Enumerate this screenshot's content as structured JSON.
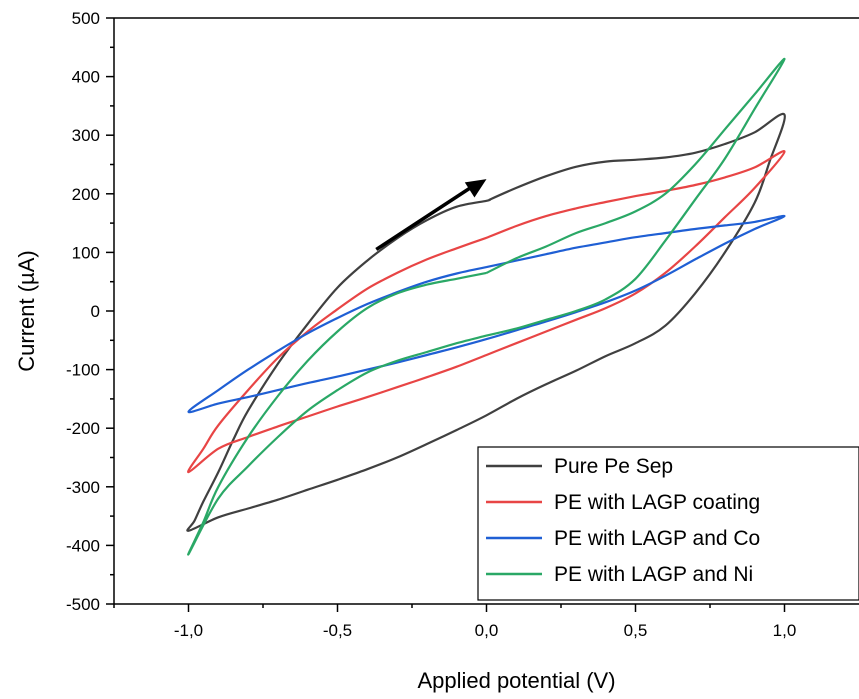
{
  "chart_data": {
    "type": "line",
    "xlabel": "Applied potential (V)",
    "ylabel": "Current (µA)",
    "xlim": [
      -1.25,
      1.25
    ],
    "ylim": [
      -500,
      500
    ],
    "x_ticks": [
      "-1,0",
      "-0,5",
      "0,0",
      "0,5",
      "1,0"
    ],
    "x_tick_values": [
      -1.0,
      -0.5,
      0.0,
      0.5,
      1.0
    ],
    "y_ticks": [
      "500",
      "400",
      "300",
      "200",
      "100",
      "0",
      "-100",
      "-200",
      "-300",
      "-400",
      "-500"
    ],
    "y_tick_values": [
      500,
      400,
      300,
      200,
      100,
      0,
      -100,
      -200,
      -300,
      -400,
      -500
    ],
    "legend_position": "bottom-right",
    "series": [
      {
        "name": "Pure Pe Sep",
        "color": "#404040",
        "x": [
          0.01,
          0.1,
          0.2,
          0.3,
          0.4,
          0.5,
          0.6,
          0.7,
          0.8,
          0.9,
          1.0,
          0.95,
          0.9,
          0.8,
          0.7,
          0.6,
          0.5,
          0.4,
          0.3,
          0.2,
          0.1,
          0.0,
          -0.1,
          -0.2,
          -0.3,
          -0.4,
          -0.5,
          -0.6,
          -0.7,
          -0.8,
          -0.9,
          -1.0,
          -0.98,
          -0.95,
          -0.9,
          -0.85,
          -0.8,
          -0.7,
          -0.6,
          -0.5,
          -0.4,
          -0.3,
          -0.2,
          -0.1,
          0.0,
          0.01
        ],
        "y": [
          190,
          210,
          230,
          246,
          255,
          258,
          262,
          270,
          285,
          305,
          335,
          255,
          185,
          100,
          30,
          -25,
          -55,
          -77,
          -102,
          -125,
          -150,
          -178,
          -203,
          -227,
          -250,
          -270,
          -288,
          -305,
          -322,
          -337,
          -352,
          -375,
          -358,
          -325,
          -275,
          -220,
          -170,
          -90,
          -22,
          40,
          86,
          124,
          155,
          178,
          188,
          190
        ]
      },
      {
        "name": "PE with LAGP coating",
        "color": "#e84545",
        "x": [
          0.0,
          0.1,
          0.2,
          0.3,
          0.4,
          0.5,
          0.6,
          0.7,
          0.8,
          0.9,
          1.0,
          0.9,
          0.8,
          0.7,
          0.6,
          0.5,
          0.4,
          0.3,
          0.2,
          0.1,
          0.0,
          -0.1,
          -0.2,
          -0.3,
          -0.4,
          -0.5,
          -0.6,
          -0.7,
          -0.8,
          -0.9,
          -1.0,
          -0.95,
          -0.9,
          -0.8,
          -0.7,
          -0.6,
          -0.5,
          -0.4,
          -0.3,
          -0.2,
          -0.1,
          0.0
        ],
        "y": [
          125,
          145,
          162,
          175,
          186,
          196,
          205,
          215,
          228,
          245,
          272,
          210,
          160,
          110,
          65,
          30,
          5,
          -15,
          -35,
          -55,
          -75,
          -95,
          -113,
          -130,
          -147,
          -163,
          -180,
          -197,
          -215,
          -235,
          -275,
          -235,
          -195,
          -135,
          -80,
          -35,
          3,
          38,
          65,
          88,
          107,
          125
        ]
      },
      {
        "name": "PE with LAGP and Co",
        "color": "#1f5fd4",
        "x": [
          0.0,
          0.1,
          0.2,
          0.3,
          0.4,
          0.5,
          0.6,
          0.7,
          0.8,
          0.9,
          1.0,
          0.9,
          0.8,
          0.7,
          0.6,
          0.5,
          0.4,
          0.3,
          0.2,
          0.1,
          0.0,
          -0.1,
          -0.2,
          -0.3,
          -0.4,
          -0.5,
          -0.6,
          -0.7,
          -0.8,
          -0.9,
          -1.0,
          -0.9,
          -0.8,
          -0.7,
          -0.6,
          -0.5,
          -0.4,
          -0.3,
          -0.2,
          -0.1,
          0.0
        ],
        "y": [
          75,
          86,
          97,
          108,
          117,
          126,
          133,
          140,
          146,
          152,
          162,
          140,
          115,
          88,
          60,
          35,
          15,
          -2,
          -18,
          -33,
          -48,
          -62,
          -75,
          -88,
          -100,
          -112,
          -123,
          -135,
          -147,
          -158,
          -172,
          -135,
          -100,
          -68,
          -38,
          -12,
          12,
          32,
          50,
          64,
          75
        ]
      },
      {
        "name": "PE with LAGP and Ni",
        "color": "#2aa866",
        "x": [
          0.0,
          0.1,
          0.2,
          0.3,
          0.4,
          0.5,
          0.6,
          0.7,
          0.8,
          0.9,
          1.0,
          0.9,
          0.8,
          0.7,
          0.6,
          0.5,
          0.4,
          0.3,
          0.2,
          0.1,
          0.0,
          -0.1,
          -0.2,
          -0.3,
          -0.4,
          -0.5,
          -0.6,
          -0.7,
          -0.8,
          -0.9,
          -1.0,
          -0.95,
          -0.9,
          -0.8,
          -0.7,
          -0.6,
          -0.5,
          -0.4,
          -0.3,
          -0.2,
          -0.1,
          0.0
        ],
        "y": [
          65,
          90,
          110,
          133,
          150,
          170,
          200,
          250,
          310,
          370,
          430,
          345,
          260,
          190,
          120,
          55,
          20,
          0,
          -15,
          -30,
          -42,
          -55,
          -70,
          -85,
          -105,
          -135,
          -170,
          -215,
          -265,
          -320,
          -415,
          -360,
          -300,
          -215,
          -145,
          -85,
          -35,
          5,
          30,
          45,
          55,
          65
        ]
      }
    ]
  },
  "annotation": {
    "arrow_color": "#000000"
  }
}
